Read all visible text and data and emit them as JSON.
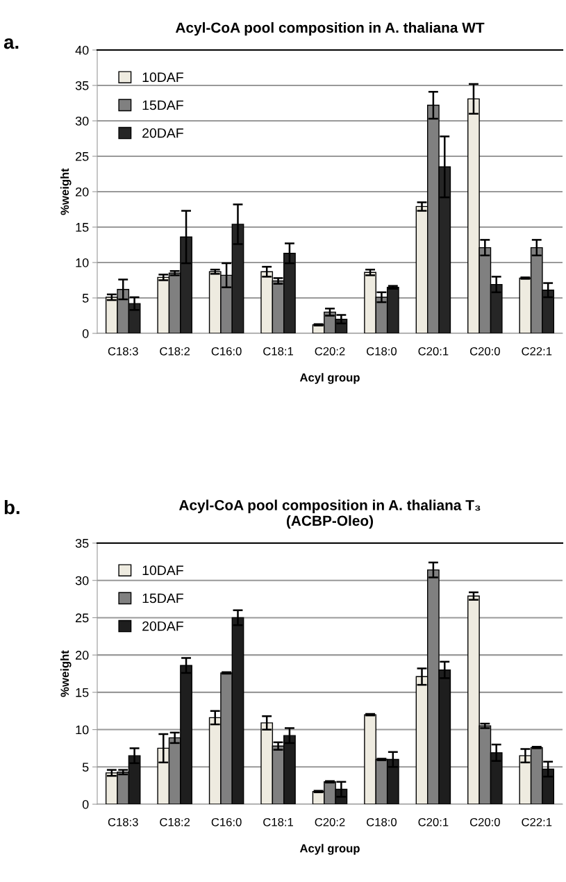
{
  "chart_data": [
    {
      "type": "bar",
      "title": "Acyl-CoA pool composition in A. thaliana WT",
      "xlabel": "Acyl group",
      "ylabel": "%weight",
      "annotations": [
        "a."
      ],
      "categories": [
        "C18:3",
        "C18:2",
        "C16:0",
        "C18:1",
        "C20:2",
        "C18:0",
        "C20:1",
        "C20:0",
        "C22:1"
      ],
      "series": [
        {
          "name": "10DAF",
          "color": "#eeebe0",
          "values": [
            5.1,
            7.9,
            8.7,
            8.7,
            1.2,
            8.6,
            17.9,
            33.1,
            7.8
          ],
          "errors": [
            0.4,
            0.4,
            0.3,
            0.7,
            0.1,
            0.4,
            0.6,
            2.1,
            0.1
          ]
        },
        {
          "name": "15DAF",
          "color": "#808080",
          "values": [
            6.2,
            8.5,
            8.2,
            7.4,
            3.0,
            5.1,
            32.2,
            12.1,
            12.1
          ],
          "errors": [
            1.4,
            0.3,
            1.7,
            0.4,
            0.5,
            0.7,
            1.9,
            1.1,
            1.1
          ]
        },
        {
          "name": "20DAF",
          "color": "#262626",
          "values": [
            4.2,
            13.6,
            15.4,
            11.3,
            2.0,
            6.5,
            23.5,
            6.9,
            6.1
          ],
          "errors": [
            0.9,
            3.7,
            2.8,
            1.4,
            0.6,
            0.2,
            4.3,
            1.1,
            1.0
          ]
        }
      ],
      "ylim": [
        0,
        40
      ],
      "yticks": [
        0,
        5,
        10,
        15,
        20,
        25,
        30,
        35,
        40
      ],
      "grid": "y",
      "legend": "top left"
    },
    {
      "type": "bar",
      "title": "Acyl-CoA pool composition in A. thaliana T₃\n(ACBP-Oleo)",
      "xlabel": "Acyl group",
      "ylabel": "%weight",
      "annotations": [
        "b."
      ],
      "categories": [
        "C18:3",
        "C18:2",
        "C16:0",
        "C18:1",
        "C20:2",
        "C18:0",
        "C20:1",
        "C20:0",
        "C22:1"
      ],
      "series": [
        {
          "name": "10DAF",
          "color": "#eeebe0",
          "values": [
            4.2,
            7.5,
            11.6,
            10.9,
            1.7,
            12.0,
            17.1,
            27.9,
            6.5
          ],
          "errors": [
            0.4,
            1.9,
            0.9,
            0.9,
            0.1,
            0.1,
            1.1,
            0.5,
            0.9
          ]
        },
        {
          "name": "15DAF",
          "color": "#808080",
          "values": [
            4.3,
            8.9,
            17.6,
            7.8,
            3.0,
            6.0,
            31.4,
            10.5,
            7.6
          ],
          "errors": [
            0.3,
            0.7,
            0.1,
            0.5,
            0.1,
            0.1,
            1.0,
            0.3,
            0.1
          ]
        },
        {
          "name": "20DAF",
          "color": "#1e1e1e",
          "values": [
            6.5,
            18.6,
            25.0,
            9.2,
            2.0,
            6.0,
            18.0,
            6.9,
            4.7
          ],
          "errors": [
            1.0,
            1.0,
            1.0,
            1.0,
            1.0,
            1.0,
            1.1,
            1.1,
            1.0
          ]
        }
      ],
      "ylim": [
        0,
        35
      ],
      "yticks": [
        0,
        5,
        10,
        15,
        20,
        25,
        30,
        35
      ],
      "grid": "y",
      "legend": "top left"
    }
  ]
}
